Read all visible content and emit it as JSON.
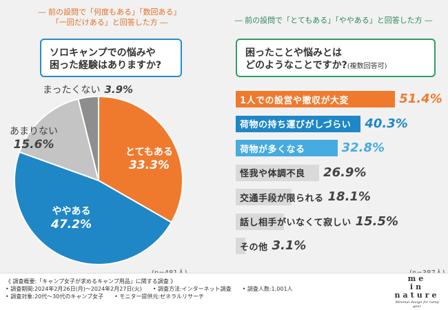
{
  "left": {
    "heading_line1": "― 前の設問で「何度もある」「数回ある」",
    "heading_line2": "「一回だけある」と回答した方 ―",
    "question_line1": "ソロキャンプでの悩みや",
    "question_line2": "困った経験はありますか?",
    "sample": "(n=481人)"
  },
  "right": {
    "heading": "― 前の設問で「とてもある」「ややある」と回答した方 ―",
    "question_line1": "困ったことや悩みとは",
    "question_line2": "どのようなことですか?",
    "question_suffix": "(複数回答可)",
    "sample": "(n=387人)"
  },
  "chart_data": [
    {
      "type": "pie",
      "title": "ソロキャンプでの悩みや困った経験はありますか?",
      "start": "12 o'clock",
      "direction": "clockwise",
      "slices": [
        {
          "label": "とてもある",
          "value": 33.3,
          "display": "33.3%",
          "color": "#ef7a2e"
        },
        {
          "label": "ややある",
          "value": 47.2,
          "display": "47.2%",
          "color": "#1f87c6"
        },
        {
          "label": "あまりない",
          "value": 15.6,
          "display": "15.6%",
          "color": "#c4c4c4"
        },
        {
          "label": "まったくない",
          "value": 3.9,
          "display": "3.9%",
          "color": "#8e8e8e"
        }
      ]
    },
    {
      "type": "bar",
      "orientation": "horizontal",
      "title": "困ったことや悩みとはどのようなことですか?(複数回答可)",
      "xlim": [
        0,
        60
      ],
      "categories": [
        "1人での設営や撤収が大変",
        "荷物の持ち運びがしづらい",
        "荷物が多くなる",
        "怪我や体調不良",
        "交通手段が限られる",
        "話し相手がいなくて寂しい",
        "その他"
      ],
      "values": [
        51.4,
        40.3,
        32.8,
        26.9,
        18.1,
        15.5,
        3.1
      ],
      "display": [
        "51.4%",
        "40.3%",
        "32.8%",
        "26.9%",
        "18.1%",
        "15.5%",
        "3.1%"
      ],
      "colors": [
        "#ef7a2e",
        "#1f87c6",
        "#46abe0",
        "#d9d9d9",
        "#d9d9d9",
        "#d9d9d9",
        "#d9d9d9"
      ],
      "label_colors": [
        "#ffffff",
        "#ffffff",
        "#ffffff",
        "#333333",
        "#333333",
        "#333333",
        "#333333"
      ],
      "pct_colors": [
        "#ef7a2e",
        "#1f87c6",
        "#46abe0",
        "#444444",
        "#444444",
        "#444444",
        "#444444"
      ]
    }
  ],
  "footer": {
    "line1": "《 調査概要:「キャンプ女子が求めるキャンプ用品」に関する調査 》",
    "period": "• 調査期間:2024年2月26日(月)〜2024年2月27日(火)",
    "method": "• 調査方法:インターネット調査",
    "count": "• 調査人数:1,001人",
    "target": "• 調査対象:20代〜30代のキャンプ女子",
    "provider": "• モニター提供元:ゼネラルリサーチ",
    "logo_line1": "me",
    "logo_line2": "in",
    "logo_line3": "nature",
    "logo_tagline": "Minimal design for camp gear"
  }
}
